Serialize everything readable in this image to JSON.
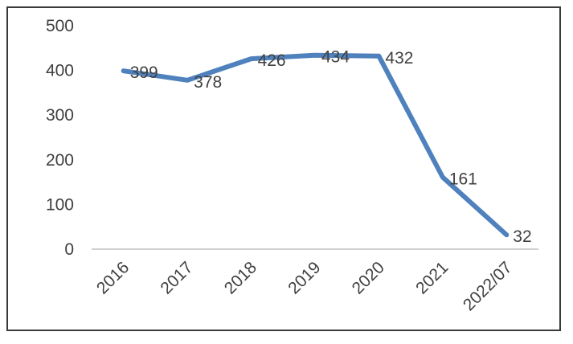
{
  "chart_data": {
    "type": "line",
    "title": "",
    "xlabel": "",
    "ylabel": "",
    "categories": [
      "2016",
      "2017",
      "2018",
      "2019",
      "2020",
      "2021",
      "2022/07"
    ],
    "series": [
      {
        "values": [
          399,
          378,
          426,
          434,
          432,
          161,
          32
        ]
      }
    ],
    "data_labels": [
      "399",
      "378",
      "426",
      "434",
      "432",
      "161",
      "32"
    ],
    "y_ticks": [
      "0",
      "100",
      "200",
      "300",
      "400",
      "500"
    ],
    "ylim": [
      0,
      500
    ],
    "grid": false,
    "legend": "none",
    "line_color": "#4f81bd",
    "axis_color": "#bfbfbf"
  }
}
